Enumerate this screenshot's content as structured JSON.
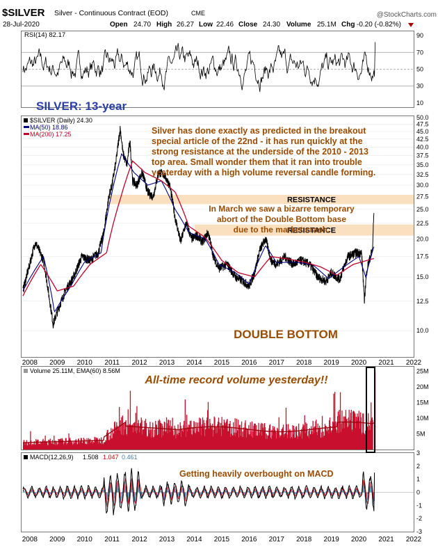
{
  "header": {
    "symbol": "$SILVER",
    "name": "Silver - Continuous Contract (EOD)",
    "exchange": "CME",
    "date": "28-Jul-2020",
    "open_label": "Open",
    "open": "24.70",
    "high_label": "High",
    "high": "26.27",
    "low_label": "Low",
    "low": "22.46",
    "close_label": "Close",
    "close": "24.30",
    "volume_label": "Volume",
    "volume": "25.1M",
    "chg_label": "Chg",
    "chg": "-0.20 (-0.82%)",
    "brand": "@StockCharts.com"
  },
  "chart_data": [
    {
      "type": "line",
      "panel": "rsi",
      "legend": "RSI(14) 82.17",
      "series": [
        {
          "name": "RSI(14)",
          "last": 82.17
        }
      ],
      "ylim": [
        5,
        95
      ],
      "yticks": [
        10,
        30,
        50,
        70,
        90
      ],
      "reference_lines": [
        30,
        50,
        70
      ],
      "annotation": "SILVER: 13-year"
    },
    {
      "type": "line",
      "panel": "price",
      "title": "$SILVER (Daily) 24.30",
      "x_range": [
        2007.7,
        2022.0
      ],
      "ylim": [
        8.2,
        50.5
      ],
      "yticks": [
        10.0,
        12.5,
        15.0,
        17.5,
        20.0,
        22.5,
        25.0,
        27.5,
        30.0,
        32.5,
        35.0,
        37.5,
        40.0,
        42.5,
        45.0,
        47.5,
        50.0
      ],
      "scale": "log",
      "series": [
        {
          "name": "$SILVER (Daily) 24.30",
          "color": "#000000",
          "x": [
            2007.75,
            2008.0,
            2008.2,
            2008.5,
            2008.7,
            2008.85,
            2009.0,
            2009.3,
            2009.6,
            2009.9,
            2010.2,
            2010.5,
            2010.7,
            2010.9,
            2011.0,
            2011.15,
            2011.3,
            2011.4,
            2011.55,
            2011.65,
            2011.75,
            2011.9,
            2012.1,
            2012.3,
            2012.5,
            2012.7,
            2012.9,
            2013.1,
            2013.3,
            2013.5,
            2013.7,
            2013.9,
            2014.1,
            2014.3,
            2014.5,
            2014.7,
            2014.9,
            2015.2,
            2015.5,
            2015.8,
            2016.0,
            2016.2,
            2016.4,
            2016.6,
            2016.8,
            2017.0,
            2017.3,
            2017.6,
            2017.9,
            2018.2,
            2018.5,
            2018.8,
            2019.0,
            2019.3,
            2019.6,
            2019.9,
            2020.1,
            2020.2,
            2020.3,
            2020.5,
            2020.55
          ],
          "y": [
            13.5,
            16.5,
            19.5,
            17.0,
            13.0,
            10.5,
            11.5,
            13.5,
            15.0,
            17.5,
            17.0,
            18.0,
            21.0,
            28.0,
            30.0,
            36.0,
            46.0,
            38.0,
            35.0,
            42.0,
            31.0,
            30.0,
            33.0,
            28.5,
            27.5,
            33.0,
            32.5,
            30.0,
            23.5,
            19.5,
            22.5,
            20.0,
            20.5,
            19.5,
            21.0,
            17.5,
            16.0,
            16.5,
            15.0,
            14.5,
            14.0,
            15.5,
            18.5,
            20.0,
            17.0,
            16.5,
            17.5,
            16.5,
            17.0,
            16.5,
            15.0,
            14.5,
            15.5,
            14.7,
            17.5,
            18.0,
            18.0,
            12.5,
            16.0,
            18.5,
            24.3
          ]
        },
        {
          "name": "MA(50) 18.86",
          "color": "#000080",
          "x": [
            2007.75,
            2008.5,
            2008.9,
            2009.5,
            2010.0,
            2010.6,
            2011.0,
            2011.35,
            2011.8,
            2012.3,
            2012.8,
            2013.3,
            2013.8,
            2014.4,
            2014.9,
            2015.5,
            2016.0,
            2016.6,
            2017.0,
            2017.6,
            2018.3,
            2018.9,
            2019.5,
            2020.0,
            2020.25,
            2020.55
          ],
          "y": [
            13.5,
            17.5,
            11.5,
            14.0,
            16.8,
            18.0,
            28.5,
            38.0,
            33.0,
            30.0,
            31.0,
            25.0,
            21.0,
            20.0,
            16.5,
            15.5,
            14.2,
            19.0,
            16.7,
            16.8,
            16.5,
            14.8,
            16.3,
            17.5,
            15.0,
            18.86
          ]
        },
        {
          "name": "MA(200) 17.25",
          "color": "#c0002a",
          "x": [
            2007.75,
            2008.4,
            2009.0,
            2009.6,
            2010.2,
            2010.8,
            2011.3,
            2011.75,
            2012.2,
            2012.8,
            2013.3,
            2013.8,
            2014.4,
            2015.0,
            2015.6,
            2016.2,
            2016.8,
            2017.4,
            2018.0,
            2018.6,
            2019.2,
            2019.8,
            2020.3,
            2020.55
          ],
          "y": [
            13.0,
            16.5,
            13.5,
            14.0,
            16.5,
            18.0,
            27.0,
            36.0,
            33.0,
            31.0,
            28.5,
            22.0,
            20.2,
            17.0,
            15.5,
            15.0,
            17.5,
            17.2,
            16.8,
            16.2,
            15.2,
            16.5,
            17.0,
            17.25
          ]
        }
      ],
      "resistance_zones": [
        {
          "label": "RESISTANCE",
          "low": 26.0,
          "high": 27.9
        },
        {
          "label": "RESISTANCE",
          "low": 20.5,
          "high": 22.3
        }
      ],
      "annotations": [
        "Silver has done exactly as predicted in the breakout",
        "special article of the 22nd - it has run quickly at the",
        "strong resistance at the underside of the 2010 - 2013",
        "top area. Small wonder them that it ran into trouble",
        "yesterday with a high volume reversal candle forming.",
        "In March we saw a bizarre temporary",
        "abort of the Double Bottom base",
        "due to the market crash.",
        "DOUBLE BOTTOM"
      ]
    },
    {
      "type": "bar",
      "panel": "volume",
      "legend": "Volume 25.11M, EMA(60) 8.56M",
      "series": [
        {
          "name": "Volume 25.11M",
          "last": 25.11
        },
        {
          "name": "EMA(60) 8.56M",
          "last": 8.56
        }
      ],
      "ylim": [
        0,
        26.5
      ],
      "yticks": [
        "5M",
        "10M",
        "15M",
        "20M",
        "25M"
      ],
      "annotation": "All-time record volume yesterday!!"
    },
    {
      "type": "line",
      "panel": "macd",
      "legend_label": "MACD(12,26,9)",
      "series": [
        {
          "name": "MACD",
          "last": 1.508,
          "color": "#000000"
        },
        {
          "name": "Signal",
          "last": 1.047,
          "color": "#cc0000"
        },
        {
          "name": "Histogram",
          "last": 0.461,
          "color": "#6aa0c8"
        }
      ],
      "ylim": [
        -3.0,
        3.0
      ],
      "yticks": [
        -3,
        -2,
        -1,
        0,
        1,
        2,
        3
      ],
      "annotation": "Getting heavily overbought on MACD"
    }
  ],
  "x_axis": {
    "labels": [
      "2008",
      "2009",
      "2010",
      "2011",
      "2012",
      "2013",
      "2014",
      "2015",
      "2016",
      "2017",
      "2018",
      "2019",
      "2020",
      "2021",
      "2022"
    ]
  },
  "colors": {
    "annotation_brown": "#9a4c00",
    "annotation_blue": "#2b3fa8",
    "resistance_fill": "#fbe0c0",
    "volume_red": "#c8102e"
  }
}
